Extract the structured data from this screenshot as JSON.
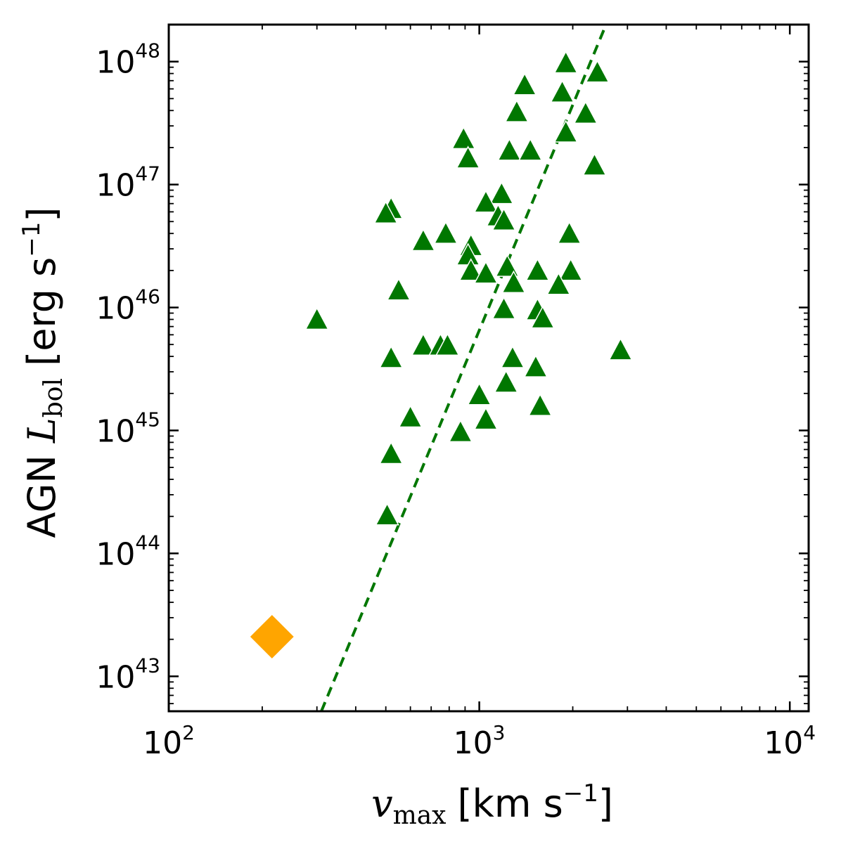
{
  "chart_data": {
    "type": "scatter",
    "title": "",
    "xlabel": {
      "symbol": "v",
      "subscript": "max",
      "unit": "[km s",
      "unit_exp": "−1",
      "unit_close": "]"
    },
    "ylabel": {
      "prefix": "AGN ",
      "symbol": "L",
      "subscript": "bol",
      "unit": " [erg s",
      "unit_exp": "−1",
      "unit_close": "]"
    },
    "x_scale": "log",
    "y_scale": "log",
    "xlim": [
      100,
      11500
    ],
    "ylim": [
      5.2e+42,
      2e+48
    ],
    "x_ticks": [
      {
        "value": 100,
        "base": "10",
        "exp": "2"
      },
      {
        "value": 1000,
        "base": "10",
        "exp": "3"
      },
      {
        "value": 10000,
        "base": "10",
        "exp": "4"
      }
    ],
    "y_ticks": [
      {
        "value": 1e+43,
        "base": "10",
        "exp": "43"
      },
      {
        "value": 1e+44,
        "base": "10",
        "exp": "44"
      },
      {
        "value": 1e+45,
        "base": "10",
        "exp": "45"
      },
      {
        "value": 1e+46,
        "base": "10",
        "exp": "46"
      },
      {
        "value": 1e+47,
        "base": "10",
        "exp": "47"
      },
      {
        "value": 1e+48,
        "base": "10",
        "exp": "48"
      }
    ],
    "grid": false,
    "series": [
      {
        "marker": "triangle",
        "color": "#007700",
        "points": [
          [
            1900,
            9.5e+47
          ],
          [
            2400,
            8e+47
          ],
          [
            1400,
            6.3e+47
          ],
          [
            1850,
            5.5e+47
          ],
          [
            2200,
            3.7e+47
          ],
          [
            1320,
            3.8e+47
          ],
          [
            1900,
            2.6e+47
          ],
          [
            890,
            2.3e+47
          ],
          [
            1250,
            1.85e+47
          ],
          [
            1460,
            1.85e+47
          ],
          [
            2350,
            1.4e+47
          ],
          [
            920,
            1.6e+47
          ],
          [
            1180,
            8.2e+46
          ],
          [
            1050,
            7e+46
          ],
          [
            520,
            6.2e+46
          ],
          [
            500,
            5.7e+46
          ],
          [
            1150,
            5.4e+46
          ],
          [
            1200,
            5e+46
          ],
          [
            780,
            3.9e+46
          ],
          [
            1950,
            3.9e+46
          ],
          [
            660,
            3.4e+46
          ],
          [
            940,
            3.1e+46
          ],
          [
            920,
            2.6e+46
          ],
          [
            1230,
            2.1e+46
          ],
          [
            1540,
            1.95e+46
          ],
          [
            1970,
            1.95e+46
          ],
          [
            940,
            1.95e+46
          ],
          [
            1050,
            1.85e+46
          ],
          [
            1290,
            1.55e+46
          ],
          [
            1800,
            1.5e+46
          ],
          [
            550,
            1.35e+46
          ],
          [
            1200,
            9.5e+45
          ],
          [
            1540,
            9.3e+45
          ],
          [
            1600,
            8e+45
          ],
          [
            300,
            7.8e+45
          ],
          [
            660,
            4.8e+45
          ],
          [
            750,
            4.8e+45
          ],
          [
            790,
            4.8e+45
          ],
          [
            2850,
            4.4e+45
          ],
          [
            520,
            3.8e+45
          ],
          [
            1280,
            3.8e+45
          ],
          [
            1520,
            3.2e+45
          ],
          [
            1220,
            2.4e+45
          ],
          [
            1000,
            1.9e+45
          ],
          [
            1570,
            1.55e+45
          ],
          [
            600,
            1.25e+45
          ],
          [
            1050,
            1.2e+45
          ],
          [
            870,
            9.5e+44
          ],
          [
            520,
            6.3e+44
          ],
          [
            505,
            2e+44
          ]
        ]
      },
      {
        "marker": "diamond",
        "color": "#FFA500",
        "points": [
          [
            215,
            2.1e+43
          ]
        ]
      }
    ],
    "fit_line": {
      "style": "dashed",
      "color": "#007700",
      "points": [
        [
          310,
          5.2e+42
        ],
        [
          2560,
          2e+48
        ]
      ]
    }
  }
}
